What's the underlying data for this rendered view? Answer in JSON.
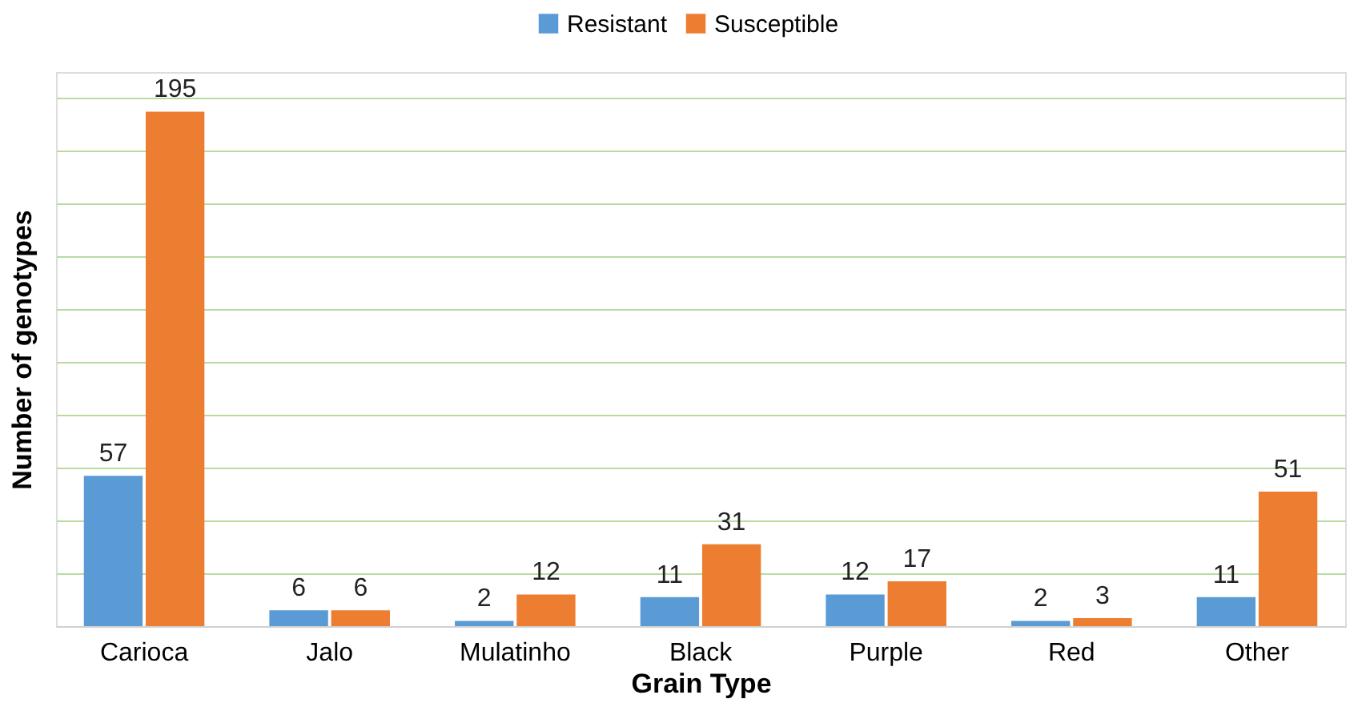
{
  "chart_data": {
    "type": "bar",
    "xlabel": "Grain Type",
    "ylabel": "Number of genotypes",
    "categories": [
      "Carioca",
      "Jalo",
      "Mulatinho",
      "Black",
      "Purple",
      "Red",
      "Other"
    ],
    "series": [
      {
        "name": "Resistant",
        "color": "#5b9bd5",
        "values": [
          57,
          6,
          2,
          11,
          12,
          2,
          11
        ]
      },
      {
        "name": "Susceptible",
        "color": "#ed7d31",
        "values": [
          195,
          6,
          12,
          31,
          17,
          3,
          51
        ]
      }
    ],
    "ylim": [
      0,
      210
    ],
    "yticks": [
      {
        "value": 0,
        "label": null
      },
      {
        "value": 20,
        "label": null
      },
      {
        "value": 40,
        "label": null
      },
      {
        "value": 60,
        "label": null
      },
      {
        "value": 80,
        "label": null
      },
      {
        "value": 100,
        "label": null
      },
      {
        "value": 120,
        "label": null
      },
      {
        "value": 140,
        "label": null
      },
      {
        "value": 160,
        "label": null
      },
      {
        "value": 180,
        "label": null
      },
      {
        "value": 200,
        "label": null
      }
    ],
    "grid": "y",
    "legend": "top",
    "data_labels": true
  }
}
